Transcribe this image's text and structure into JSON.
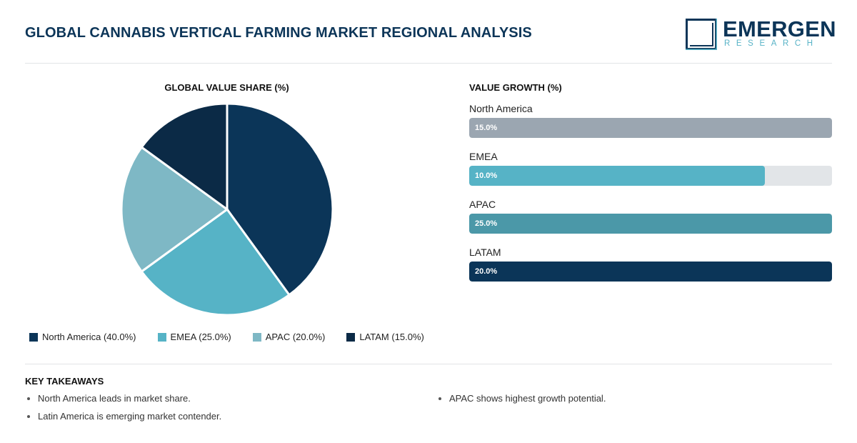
{
  "header": {
    "title": "GLOBAL CANNABIS VERTICAL FARMING MARKET REGIONAL ANALYSIS",
    "logo_word": "EMERGEN",
    "logo_sub": "RESEARCH"
  },
  "pie_section": {
    "title": "GLOBAL VALUE SHARE (%)"
  },
  "growth_section": {
    "title": "VALUE GROWTH (%)"
  },
  "takeaways": {
    "title": "KEY TAKEAWAYS",
    "items": [
      "North America leads in market share.",
      "Latin America is emerging market contender.",
      "APAC shows highest growth potential."
    ]
  },
  "colors": {
    "north_america": "#0b3558",
    "emea": "#56b3c6",
    "apac": "#7eb8c5",
    "latam": "#0b2a46",
    "bar_na": "#9ba6b1",
    "bar_emea": "#56b3c6",
    "bar_apac": "#4b98a8",
    "bar_latam": "#0b3558",
    "title": "#0c3558"
  },
  "chart_data": [
    {
      "type": "pie",
      "title": "GLOBAL VALUE SHARE (%)",
      "categories": [
        "North America",
        "EMEA",
        "APAC",
        "LATAM"
      ],
      "values": [
        40.0,
        25.0,
        20.0,
        15.0
      ],
      "legend_labels": [
        "North America (40.0%)",
        "EMEA (25.0%)",
        "APAC (20.0%)",
        "LATAM (15.0%)"
      ],
      "legend_position": "bottom"
    },
    {
      "type": "bar",
      "orientation": "horizontal",
      "title": "VALUE GROWTH (%)",
      "categories": [
        "North America",
        "EMEA",
        "APAC",
        "LATAM"
      ],
      "values": [
        15.0,
        10.0,
        25.0,
        20.0
      ],
      "value_labels": [
        "15.0%",
        "10.0%",
        "25.0%",
        "20.0%"
      ],
      "fill_fraction": [
        1.0,
        0.815,
        1.0,
        1.0
      ]
    }
  ]
}
